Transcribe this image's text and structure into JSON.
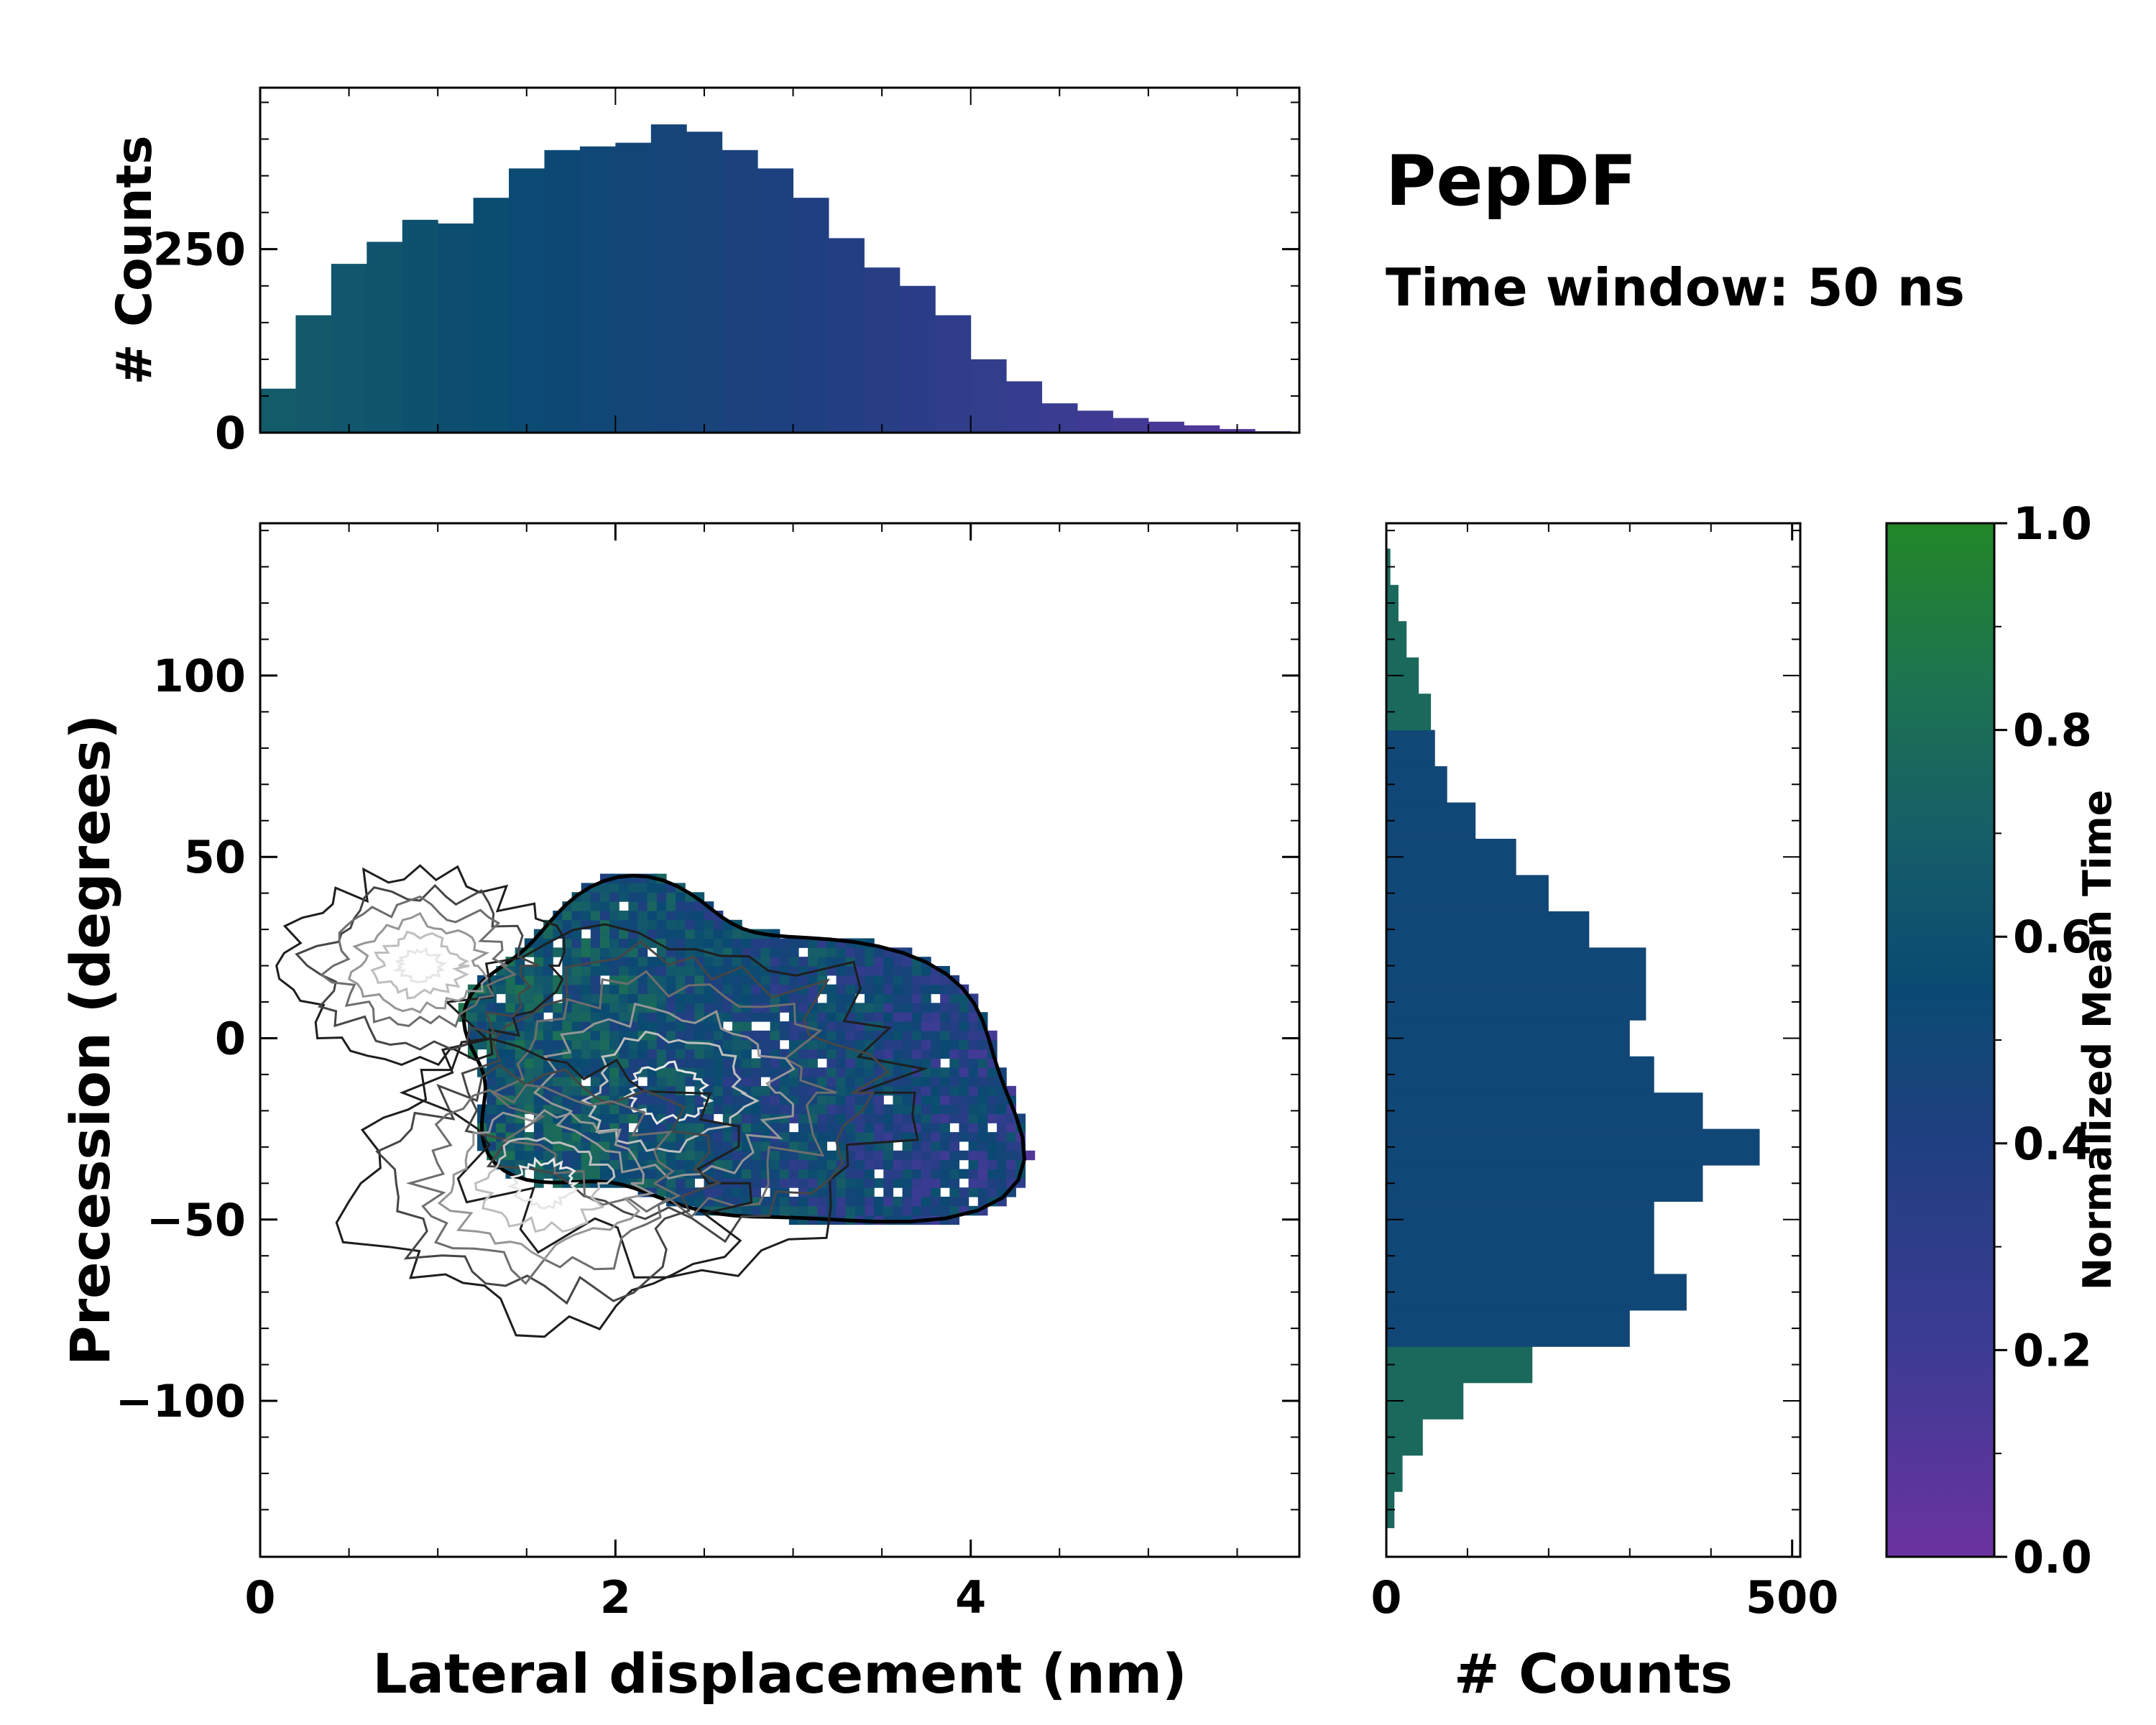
{
  "chart_data": {
    "type": "scatter",
    "annotations": {
      "title": "PepDF",
      "subtitle": "Time window: 50 ns"
    },
    "main": {
      "xlabel": "Lateral displacement (nm)",
      "ylabel": "Precession (degrees)",
      "xlim": [
        0,
        5.85
      ],
      "ylim": [
        -143,
        142
      ],
      "xticks": [
        0,
        2,
        4
      ],
      "xtick_labels": [
        "0",
        "2",
        "4"
      ],
      "yticks": [
        -100,
        -50,
        0,
        50,
        100
      ],
      "ytick_labels": [
        "−100",
        "−50",
        "0",
        "50",
        "100"
      ],
      "density_centers": [
        {
          "x": 2.3,
          "y": -15,
          "weight": 1.0
        },
        {
          "x": 1.6,
          "y": -40,
          "weight": 0.8
        },
        {
          "x": 0.9,
          "y": 20,
          "weight": 0.55
        }
      ],
      "colored_by": "Normalized Mean Time"
    },
    "top_histogram": {
      "ylabel": "# Counts",
      "ylim": [
        0,
        470
      ],
      "yticks": [
        0,
        250
      ],
      "ytick_labels": [
        "0",
        "250"
      ],
      "bin_centers": [
        0.1,
        0.3,
        0.5,
        0.7,
        0.9,
        1.1,
        1.3,
        1.5,
        1.7,
        1.9,
        2.1,
        2.3,
        2.5,
        2.7,
        2.9,
        3.1,
        3.3,
        3.5,
        3.7,
        3.9,
        4.1,
        4.3,
        4.5,
        4.7,
        4.9,
        5.1,
        5.3,
        5.5,
        5.7
      ],
      "counts": [
        60,
        160,
        230,
        260,
        290,
        285,
        320,
        360,
        385,
        390,
        395,
        420,
        410,
        385,
        360,
        320,
        265,
        225,
        200,
        160,
        100,
        70,
        40,
        30,
        20,
        15,
        10,
        5,
        2
      ]
    },
    "right_histogram": {
      "xlabel": "# Counts",
      "xlim": [
        0,
        510
      ],
      "xticks": [
        0,
        500
      ],
      "xtick_labels": [
        "0",
        "500"
      ],
      "bin_centers": [
        -130,
        -120,
        -110,
        -100,
        -90,
        -80,
        -70,
        -60,
        -50,
        -40,
        -30,
        -20,
        -10,
        0,
        10,
        20,
        30,
        40,
        50,
        60,
        70,
        80,
        90,
        100,
        110,
        120,
        130
      ],
      "counts": [
        10,
        20,
        45,
        95,
        180,
        300,
        370,
        330,
        330,
        390,
        460,
        390,
        330,
        300,
        320,
        320,
        250,
        200,
        160,
        110,
        75,
        60,
        55,
        40,
        25,
        15,
        5
      ]
    },
    "colorbar": {
      "label": "Normalized Mean Time",
      "range": [
        0,
        1
      ],
      "ticks": [
        0,
        0.2,
        0.4,
        0.6,
        0.8,
        1
      ],
      "tick_labels": [
        "0.0",
        "0.2",
        "0.4",
        "0.6",
        "0.8",
        "1.0"
      ],
      "colors": [
        "#6b32a0",
        "#3d3b94",
        "#203f80",
        "#0a4a72",
        "#165e68",
        "#1d7450",
        "#238628"
      ]
    }
  }
}
